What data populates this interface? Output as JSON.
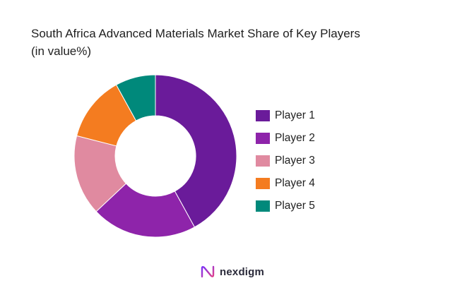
{
  "title_line1": "South Africa Advanced Materials Market Share of Key Players",
  "title_line2": "(in value%)",
  "brand": {
    "name": "nexdigm",
    "logo_icon": "nexdigm-logo-icon"
  },
  "chart_data": {
    "type": "pie",
    "donut": true,
    "title": "South Africa Advanced Materials Market Share of Key Players (in value%)",
    "categories": [
      "Player 1",
      "Player 2",
      "Player 3",
      "Player 4",
      "Player 5"
    ],
    "values": [
      42,
      21,
      16,
      13,
      8
    ],
    "colors": [
      "#6a1b9a",
      "#8e24aa",
      "#e08aa0",
      "#f47c20",
      "#00897b"
    ],
    "legend_placement": "right",
    "start_angle_deg": 0,
    "direction": "clockwise"
  }
}
